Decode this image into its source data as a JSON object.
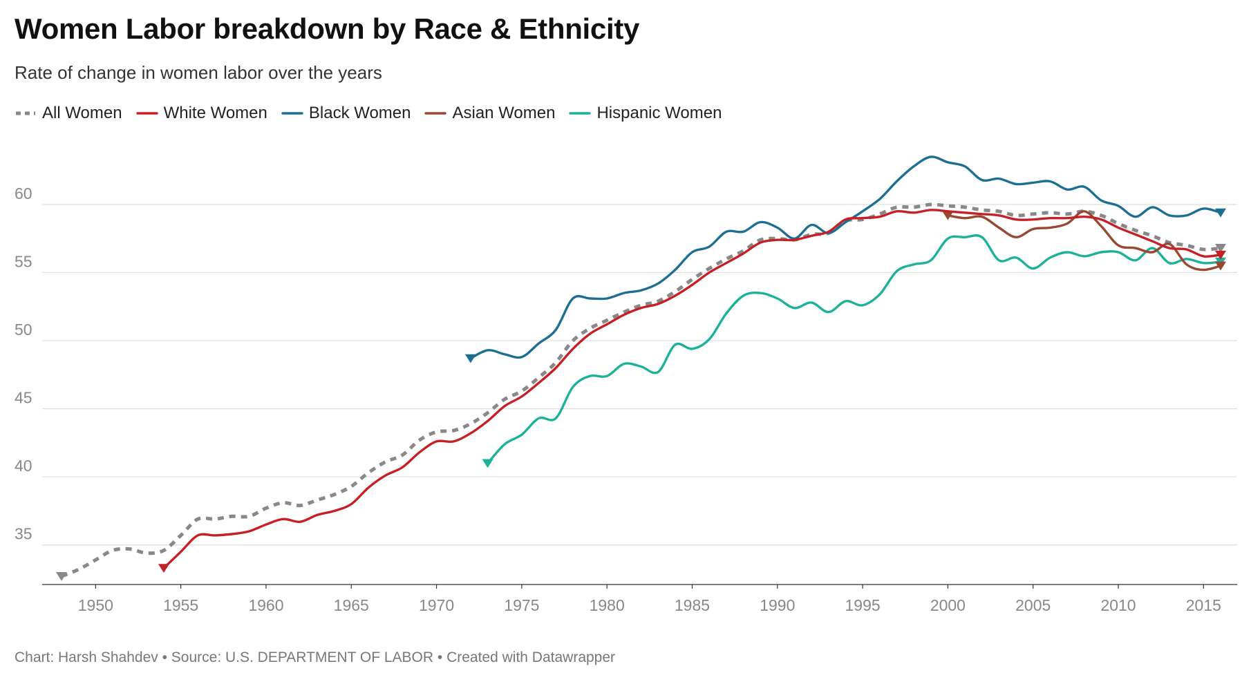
{
  "header": {
    "title": "Women Labor breakdown by Race & Ethnicity",
    "subtitle": "Rate of change in women labor over the years"
  },
  "footer": {
    "credit": "Chart: Harsh Shahdev • Source: U.S. DEPARTMENT OF LABOR • Created with Datawrapper"
  },
  "chart_data": {
    "type": "line",
    "title": "Women Labor breakdown by Race & Ethnicity",
    "subtitle": "Rate of change in women labor over the years",
    "xlabel": "",
    "ylabel": "",
    "xlim": [
      1948,
      2016
    ],
    "ylim": [
      32.5,
      63.5
    ],
    "x_ticks": [
      1950,
      1955,
      1960,
      1965,
      1970,
      1975,
      1980,
      1985,
      1990,
      1995,
      2000,
      2005,
      2010,
      2015
    ],
    "y_ticks": [
      35,
      40,
      45,
      50,
      55,
      60
    ],
    "grid": "horizontal",
    "legend_position": "top-left",
    "series": [
      {
        "name": "All Women",
        "color": "#888888",
        "style": "dashed",
        "x": [
          1948,
          1949,
          1950,
          1951,
          1952,
          1953,
          1954,
          1955,
          1956,
          1957,
          1958,
          1959,
          1960,
          1961,
          1962,
          1963,
          1964,
          1965,
          1966,
          1967,
          1968,
          1969,
          1970,
          1971,
          1972,
          1973,
          1974,
          1975,
          1976,
          1977,
          1978,
          1979,
          1980,
          1981,
          1982,
          1983,
          1984,
          1985,
          1986,
          1987,
          1988,
          1989,
          1990,
          1991,
          1992,
          1993,
          1994,
          1995,
          1996,
          1997,
          1998,
          1999,
          2000,
          2001,
          2002,
          2003,
          2004,
          2005,
          2006,
          2007,
          2008,
          2009,
          2010,
          2011,
          2012,
          2013,
          2014,
          2015,
          2016
        ],
        "y": [
          32.7,
          33.2,
          33.9,
          34.6,
          34.7,
          34.4,
          34.6,
          35.7,
          36.9,
          36.9,
          37.1,
          37.1,
          37.7,
          38.1,
          37.9,
          38.3,
          38.7,
          39.3,
          40.3,
          41.1,
          41.6,
          42.7,
          43.3,
          43.4,
          43.9,
          44.7,
          45.7,
          46.3,
          47.3,
          48.4,
          50.0,
          50.9,
          51.5,
          52.1,
          52.6,
          52.9,
          53.6,
          54.5,
          55.3,
          56.0,
          56.6,
          57.4,
          57.5,
          57.4,
          57.8,
          57.9,
          58.8,
          58.9,
          59.3,
          59.8,
          59.8,
          60.0,
          59.9,
          59.8,
          59.6,
          59.5,
          59.2,
          59.3,
          59.4,
          59.3,
          59.5,
          59.2,
          58.6,
          58.1,
          57.7,
          57.2,
          57.0,
          56.7,
          56.8
        ]
      },
      {
        "name": "White Women",
        "color": "#c52026",
        "style": "solid",
        "x": [
          1954,
          1955,
          1956,
          1957,
          1958,
          1959,
          1960,
          1961,
          1962,
          1963,
          1964,
          1965,
          1966,
          1967,
          1968,
          1969,
          1970,
          1971,
          1972,
          1973,
          1974,
          1975,
          1976,
          1977,
          1978,
          1979,
          1980,
          1981,
          1982,
          1983,
          1984,
          1985,
          1986,
          1987,
          1988,
          1989,
          1990,
          1991,
          1992,
          1993,
          1994,
          1995,
          1996,
          1997,
          1998,
          1999,
          2000,
          2001,
          2002,
          2003,
          2004,
          2005,
          2006,
          2007,
          2008,
          2009,
          2010,
          2011,
          2012,
          2013,
          2014,
          2015,
          2016
        ],
        "y": [
          33.3,
          34.5,
          35.7,
          35.7,
          35.8,
          36.0,
          36.5,
          36.9,
          36.7,
          37.2,
          37.5,
          38.0,
          39.2,
          40.1,
          40.7,
          41.8,
          42.6,
          42.6,
          43.2,
          44.1,
          45.2,
          45.9,
          46.9,
          48.0,
          49.4,
          50.5,
          51.2,
          51.9,
          52.4,
          52.7,
          53.3,
          54.1,
          55.0,
          55.7,
          56.4,
          57.2,
          57.4,
          57.4,
          57.7,
          58.0,
          58.9,
          59.0,
          59.1,
          59.5,
          59.4,
          59.6,
          59.5,
          59.4,
          59.3,
          59.2,
          58.9,
          58.9,
          59.0,
          59.0,
          59.1,
          58.9,
          58.3,
          57.8,
          57.3,
          56.8,
          56.7,
          56.2,
          56.3
        ]
      },
      {
        "name": "Black Women",
        "color": "#1d6f92",
        "style": "solid",
        "x": [
          1972,
          1973,
          1974,
          1975,
          1976,
          1977,
          1978,
          1979,
          1980,
          1981,
          1982,
          1983,
          1984,
          1985,
          1986,
          1987,
          1988,
          1989,
          1990,
          1991,
          1992,
          1993,
          1994,
          1995,
          1996,
          1997,
          1998,
          1999,
          2000,
          2001,
          2002,
          2003,
          2004,
          2005,
          2006,
          2007,
          2008,
          2009,
          2010,
          2011,
          2012,
          2013,
          2014,
          2015,
          2016
        ],
        "y": [
          48.7,
          49.3,
          49.0,
          48.8,
          49.8,
          50.8,
          53.1,
          53.1,
          53.1,
          53.5,
          53.7,
          54.2,
          55.2,
          56.5,
          56.9,
          58.0,
          58.0,
          58.7,
          58.3,
          57.5,
          58.5,
          57.9,
          58.7,
          59.5,
          60.4,
          61.7,
          62.8,
          63.5,
          63.1,
          62.8,
          61.8,
          61.9,
          61.5,
          61.6,
          61.7,
          61.1,
          61.3,
          60.3,
          59.9,
          59.1,
          59.8,
          59.2,
          59.2,
          59.7,
          59.4
        ]
      },
      {
        "name": "Asian Women",
        "color": "#994731",
        "style": "solid",
        "x": [
          2000,
          2001,
          2002,
          2003,
          2004,
          2005,
          2006,
          2007,
          2008,
          2009,
          2010,
          2011,
          2012,
          2013,
          2014,
          2015,
          2016
        ],
        "y": [
          59.2,
          59.0,
          59.1,
          58.3,
          57.6,
          58.2,
          58.3,
          58.6,
          59.5,
          58.4,
          57.0,
          56.8,
          56.5,
          57.1,
          55.6,
          55.2,
          55.5
        ]
      },
      {
        "name": "Hispanic Women",
        "color": "#1cb29a",
        "style": "solid",
        "x": [
          1973,
          1974,
          1975,
          1976,
          1977,
          1978,
          1979,
          1980,
          1981,
          1982,
          1983,
          1984,
          1985,
          1986,
          1987,
          1988,
          1989,
          1990,
          1991,
          1992,
          1993,
          1994,
          1995,
          1996,
          1997,
          1998,
          1999,
          2000,
          2001,
          2002,
          2003,
          2004,
          2005,
          2006,
          2007,
          2008,
          2009,
          2010,
          2011,
          2012,
          2013,
          2014,
          2015,
          2016
        ],
        "y": [
          41.0,
          42.4,
          43.1,
          44.3,
          44.3,
          46.6,
          47.4,
          47.4,
          48.3,
          48.1,
          47.7,
          49.7,
          49.4,
          50.1,
          52.0,
          53.3,
          53.5,
          53.1,
          52.4,
          52.8,
          52.1,
          52.9,
          52.6,
          53.4,
          55.1,
          55.6,
          55.9,
          57.5,
          57.6,
          57.6,
          55.9,
          56.1,
          55.3,
          56.1,
          56.5,
          56.2,
          56.5,
          56.5,
          55.9,
          56.8,
          55.7,
          56.0,
          55.7,
          55.8
        ]
      }
    ]
  }
}
